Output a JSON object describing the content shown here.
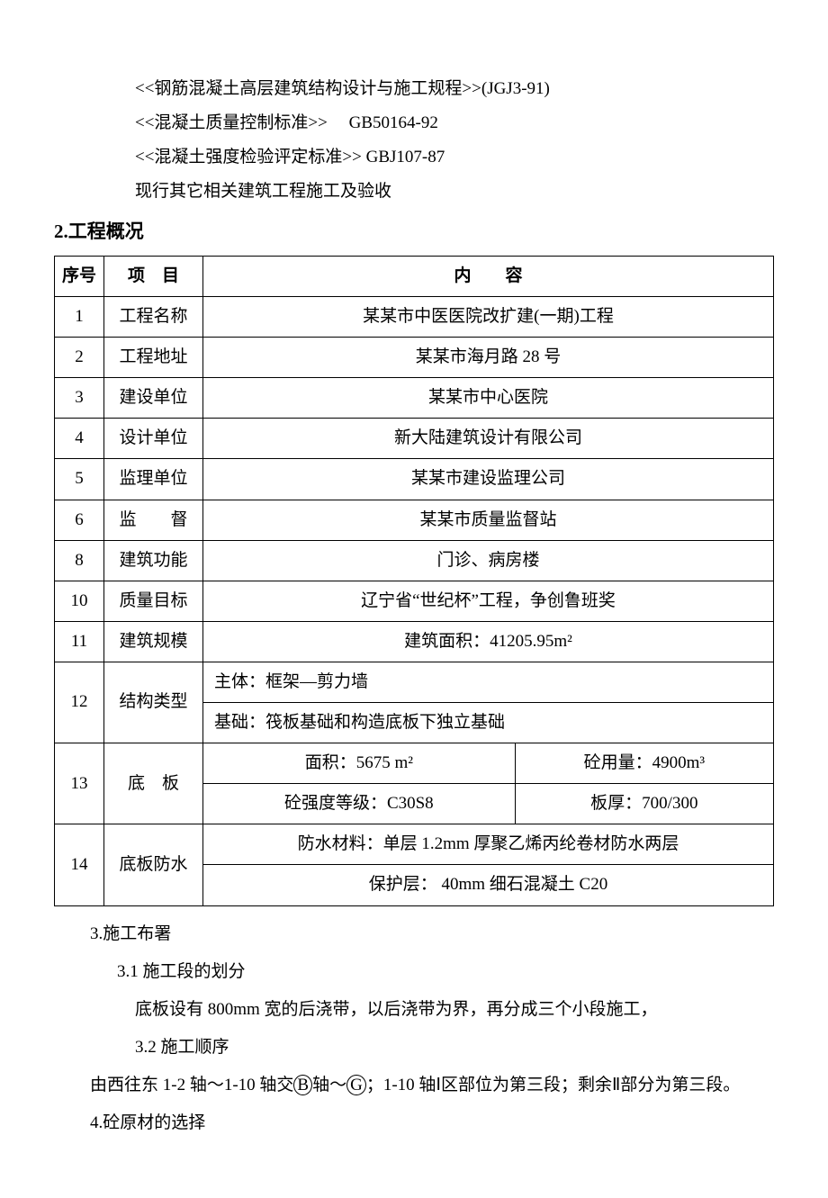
{
  "refs": {
    "r1": "<<钢筋混凝土高层建筑结构设计与施工规程>>(JGJ3-91)",
    "r2a": "<<混凝土质量控制标准>>",
    "r2b": "GB50164-92",
    "r3": "<<混凝土强度检验评定标准>> GBJ107-87",
    "r4": "现行其它相关建筑工程施工及验收"
  },
  "section2_heading": "2.工程概况",
  "table": {
    "headers": {
      "seq": "序号",
      "item": "项　目",
      "content": "内　　容"
    },
    "rows": [
      {
        "seq": "1",
        "item": "工程名称",
        "content": "某某市中医医院改扩建(一期)工程"
      },
      {
        "seq": "2",
        "item": "工程地址",
        "content": "某某市海月路 28 号"
      },
      {
        "seq": "3",
        "item": "建设单位",
        "content": "某某市中心医院"
      },
      {
        "seq": "4",
        "item": "设计单位",
        "content": "新大陆建筑设计有限公司"
      },
      {
        "seq": "5",
        "item": "监理单位",
        "content": "某某市建设监理公司"
      },
      {
        "seq": "6",
        "item": "监　　督",
        "content": "某某市质量监督站"
      },
      {
        "seq": "8",
        "item": "建筑功能",
        "content": "门诊、病房楼"
      },
      {
        "seq": "10",
        "item": "质量目标",
        "content": "辽宁省“世纪杯”工程，争创鲁班奖"
      },
      {
        "seq": "11",
        "item": "建筑规模",
        "content": "建筑面积：41205.95m²"
      }
    ],
    "row12": {
      "seq": "12",
      "item": "结构类型",
      "line1": "主体：框架—剪力墙",
      "line2": "基础：筏板基础和构造底板下独立基础"
    },
    "row13": {
      "seq": "13",
      "item": "底　板",
      "c1": "面积：5675 m²",
      "c2": "砼用量：4900m³",
      "c3": "砼强度等级：C30S8",
      "c4": "板厚：700/300"
    },
    "row14": {
      "seq": "14",
      "item": "底板防水",
      "line1": "防水材料：单层 1.2mm 厚聚乙烯丙纶卷材防水两层",
      "line2": "保护层： 40mm 细石混凝土 C20"
    }
  },
  "section3": {
    "title": "3.施工布署",
    "s31": "3.1 施工段的划分",
    "s31_body": "底板设有 800mm 宽的后浇带，以后浇带为界，再分成三个小段施工，",
    "s32": "3.2 施工顺序",
    "s32_body_pre": "由西往东 1-2 轴～1-10 轴交",
    "s32_B": "B",
    "s32_mid": "轴～",
    "s32_G": "G",
    "s32_after": "；1-10 轴Ⅰ区部位为第三段；剩余Ⅱ部分为第三段。"
  },
  "section4": {
    "title": "4.砼原材的选择"
  }
}
